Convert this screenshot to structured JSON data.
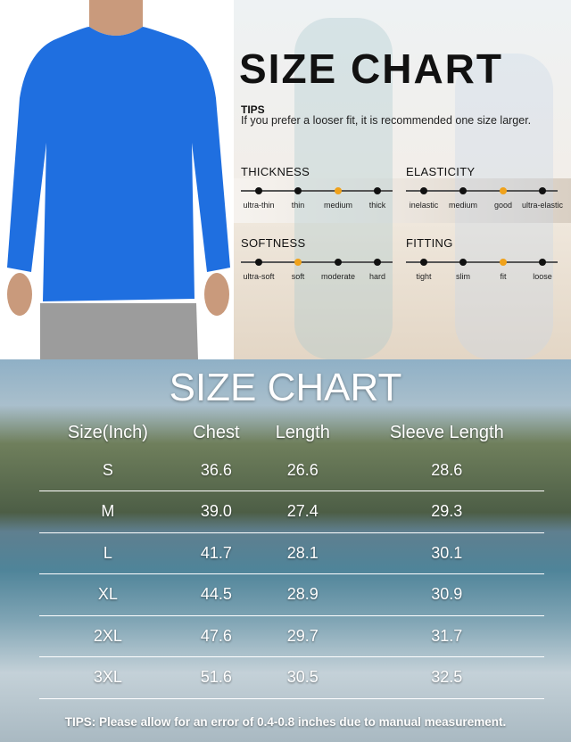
{
  "header": {
    "title": "SIZE CHART",
    "tips_label": "TIPS",
    "tips_text": "If you prefer a looser fit, it is recommended one size larger."
  },
  "colors": {
    "shirt": "#1f6fe0",
    "active_dot": "#f0a21b",
    "inactive_dot": "#111111"
  },
  "scales": [
    {
      "title": "THICKNESS",
      "options": [
        "ultra-thin",
        "thin",
        "medium",
        "thick"
      ],
      "selected": 2
    },
    {
      "title": "ELASTICITY",
      "options": [
        "inelastic",
        "medium",
        "good",
        "ultra-elastic"
      ],
      "selected": 2
    },
    {
      "title": "SOFTNESS",
      "options": [
        "ultra-soft",
        "soft",
        "moderate",
        "hard"
      ],
      "selected": 1
    },
    {
      "title": "FITTING",
      "options": [
        "tight",
        "slim",
        "fit",
        "loose"
      ],
      "selected": 2
    }
  ],
  "table": {
    "title": "SIZE CHART",
    "headers": [
      "Size(Inch)",
      "Chest",
      "Length",
      "Sleeve Length"
    ],
    "rows": [
      [
        "S",
        "36.6",
        "26.6",
        "28.6"
      ],
      [
        "M",
        "39.0",
        "27.4",
        "29.3"
      ],
      [
        "L",
        "41.7",
        "28.1",
        "30.1"
      ],
      [
        "XL",
        "44.5",
        "28.9",
        "30.9"
      ],
      [
        "2XL",
        "47.6",
        "29.7",
        "31.7"
      ],
      [
        "3XL",
        "51.6",
        "30.5",
        "32.5"
      ]
    ]
  },
  "footer": "TIPS: Please allow for an error of 0.4-0.8 inches due to manual measurement."
}
